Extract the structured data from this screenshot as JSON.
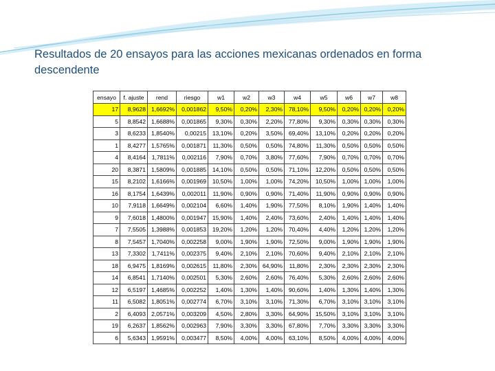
{
  "slide": {
    "title": "Resultados de 20 ensayos para las acciones mexicanas ordenados en forma descendente"
  },
  "table": {
    "columns": [
      "ensayo",
      "f. ajuste",
      "rend",
      "riesgo",
      "w1",
      "w2",
      "w3",
      "w4",
      "w5",
      "w6",
      "w7",
      "w8"
    ],
    "rows": [
      [
        "17",
        "8,9628",
        "1,6692%",
        "0,001862",
        "9,50%",
        "0,20%",
        "2,30%",
        "78,10%",
        "9,50%",
        "0,20%",
        "0,20%",
        "0,20%"
      ],
      [
        "5",
        "8,8542",
        "1,6688%",
        "0,001865",
        "9,30%",
        "0,30%",
        "2,20%",
        "77,80%",
        "9,30%",
        "0,30%",
        "0,30%",
        "0,30%"
      ],
      [
        "3",
        "8,6233",
        "1,8540%",
        "0,00215",
        "13,10%",
        "0,20%",
        "3,50%",
        "69,40%",
        "13,10%",
        "0,20%",
        "0,20%",
        "0,20%"
      ],
      [
        "1",
        "8,4277",
        "1,5765%",
        "0,001871",
        "11,30%",
        "0,50%",
        "0,50%",
        "74,80%",
        "11,30%",
        "0,50%",
        "0,50%",
        "0,50%"
      ],
      [
        "4",
        "8,4164",
        "1,7811%",
        "0,002116",
        "7,90%",
        "0,70%",
        "3,80%",
        "77,60%",
        "7,90%",
        "0,70%",
        "0,70%",
        "0,70%"
      ],
      [
        "20",
        "8,3871",
        "1,5809%",
        "0,001885",
        "14,10%",
        "0,50%",
        "0,50%",
        "71,10%",
        "12,20%",
        "0,50%",
        "0,50%",
        "0,50%"
      ],
      [
        "15",
        "8,2102",
        "1,6166%",
        "0,001969",
        "10,50%",
        "1,00%",
        "1,00%",
        "74,20%",
        "10,50%",
        "1,00%",
        "1,00%",
        "1,00%"
      ],
      [
        "16",
        "8,1754",
        "1,6439%",
        "0,002011",
        "11,90%",
        "0,90%",
        "0,90%",
        "71,40%",
        "11,90%",
        "0,90%",
        "0,90%",
        "0,90%"
      ],
      [
        "10",
        "7,9118",
        "1,6649%",
        "0,002104",
        "6,60%",
        "1,40%",
        "1,90%",
        "77,50%",
        "8,10%",
        "1,90%",
        "1,40%",
        "1,40%"
      ],
      [
        "9",
        "7,6018",
        "1,4800%",
        "0,001947",
        "15,90%",
        "1,40%",
        "2,40%",
        "73,60%",
        "2,40%",
        "1,40%",
        "1,40%",
        "1,40%"
      ],
      [
        "7",
        "7,5505",
        "1,3988%",
        "0,001853",
        "19,20%",
        "1,20%",
        "1,20%",
        "70,40%",
        "4,40%",
        "1,20%",
        "1,20%",
        "1,20%"
      ],
      [
        "8",
        "7,5457",
        "1,7040%",
        "0,002258",
        "9,00%",
        "1,90%",
        "1,90%",
        "72,50%",
        "9,00%",
        "1,90%",
        "1,90%",
        "1,90%"
      ],
      [
        "13",
        "7,3302",
        "1,7411%",
        "0,002375",
        "9,40%",
        "2,10%",
        "2,10%",
        "70,60%",
        "9,40%",
        "2,10%",
        "2,10%",
        "2,10%"
      ],
      [
        "18",
        "6,9475",
        "1,8169%",
        "0,002615",
        "11,80%",
        "2,30%",
        "64,90%",
        "11,80%",
        "2,30%",
        "2,30%",
        "2,30%",
        "2,30%"
      ],
      [
        "14",
        "6,8541",
        "1,7140%",
        "0,002501",
        "5,30%",
        "2,60%",
        "2,60%",
        "76,40%",
        "5,30%",
        "2,60%",
        "2,60%",
        "2,60%"
      ],
      [
        "12",
        "6,5197",
        "1,4685%",
        "0,002252",
        "1,40%",
        "1,30%",
        "1,40%",
        "90,60%",
        "1,40%",
        "1,30%",
        "1,40%",
        "1,30%"
      ],
      [
        "11",
        "6,5082",
        "1,8051%",
        "0,002774",
        "6,70%",
        "3,10%",
        "3,10%",
        "71,30%",
        "6,70%",
        "3,10%",
        "3,10%",
        "3,10%"
      ],
      [
        "2",
        "6,4093",
        "2,0571%",
        "0,003209",
        "4,50%",
        "2,80%",
        "3,30%",
        "64,90%",
        "15,50%",
        "3,10%",
        "3,10%",
        "3,10%"
      ],
      [
        "19",
        "6,2637",
        "1,8562%",
        "0,002963",
        "7,90%",
        "3,30%",
        "3,30%",
        "67,80%",
        "7,70%",
        "3,30%",
        "3,30%",
        "3,30%"
      ],
      [
        "6",
        "5,6343",
        "1,9591%",
        "0,003477",
        "8,50%",
        "4,00%",
        "4,00%",
        "63,10%",
        "8,50%",
        "4,00%",
        "4,00%",
        "4,00%"
      ]
    ]
  }
}
